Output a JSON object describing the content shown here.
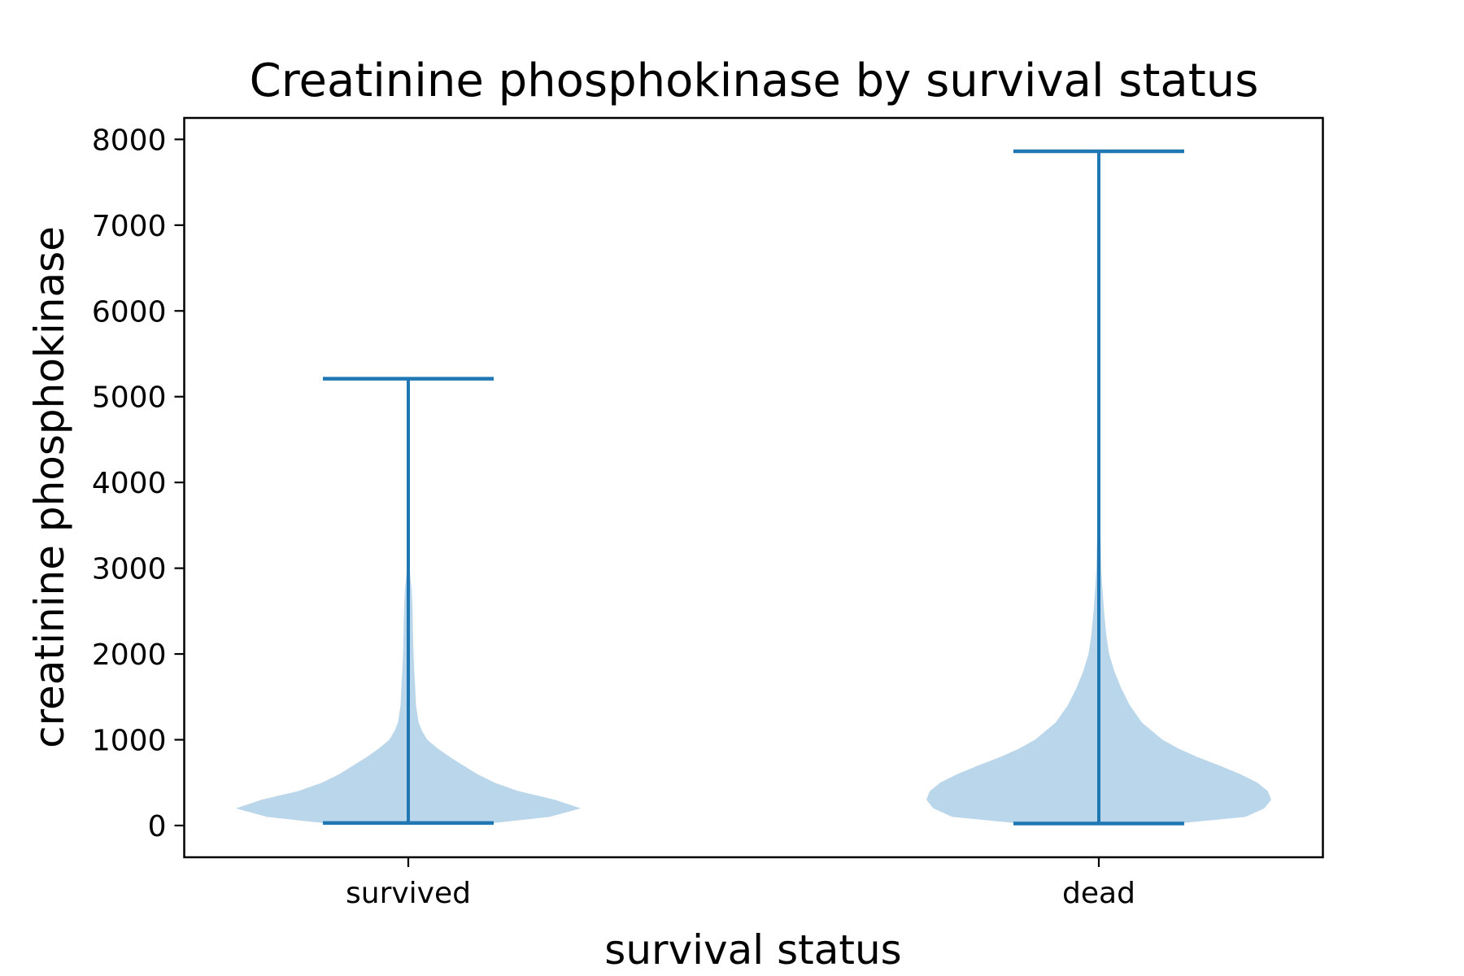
{
  "chart_data": {
    "type": "violin",
    "title": "Creatinine phosphokinase by survival status",
    "xlabel": "survival status",
    "ylabel": "creatinine phosphokinase",
    "categories": [
      "survived",
      "dead"
    ],
    "ylim": [
      -370,
      8250
    ],
    "yticks": [
      0,
      1000,
      2000,
      3000,
      4000,
      5000,
      6000,
      7000,
      8000
    ],
    "ytick_labels": [
      "0",
      "1000",
      "2000",
      "3000",
      "4000",
      "5000",
      "6000",
      "7000",
      "8000"
    ],
    "grid": false,
    "legend": "none",
    "colors": {
      "body": "#bad6ea",
      "lines": "#1f77b4",
      "axes": "#000000"
    },
    "series": [
      {
        "category": "survived",
        "min": 30,
        "max": 5209,
        "density": [
          [
            30,
            0.5
          ],
          [
            100,
            0.82
          ],
          [
            200,
            1.0
          ],
          [
            300,
            0.85
          ],
          [
            400,
            0.64
          ],
          [
            500,
            0.5
          ],
          [
            600,
            0.4
          ],
          [
            700,
            0.32
          ],
          [
            800,
            0.24
          ],
          [
            900,
            0.17
          ],
          [
            1000,
            0.11
          ],
          [
            1100,
            0.08
          ],
          [
            1200,
            0.06
          ],
          [
            1400,
            0.045
          ],
          [
            1600,
            0.04
          ],
          [
            1800,
            0.035
          ],
          [
            2000,
            0.03
          ],
          [
            2200,
            0.028
          ],
          [
            2500,
            0.025
          ],
          [
            2750,
            0.02
          ],
          [
            2900,
            0.012
          ],
          [
            3000,
            0.008
          ],
          [
            3200,
            0.003
          ],
          [
            3500,
            0.001
          ],
          [
            5209,
            0.0
          ]
        ]
      },
      {
        "category": "dead",
        "min": 23,
        "max": 7861,
        "density": [
          [
            23,
            0.45
          ],
          [
            100,
            0.85
          ],
          [
            200,
            0.96
          ],
          [
            300,
            1.0
          ],
          [
            400,
            0.98
          ],
          [
            500,
            0.92
          ],
          [
            600,
            0.82
          ],
          [
            700,
            0.7
          ],
          [
            800,
            0.57
          ],
          [
            900,
            0.46
          ],
          [
            1000,
            0.37
          ],
          [
            1200,
            0.25
          ],
          [
            1400,
            0.18
          ],
          [
            1600,
            0.13
          ],
          [
            1800,
            0.09
          ],
          [
            2000,
            0.06
          ],
          [
            2200,
            0.045
          ],
          [
            2500,
            0.03
          ],
          [
            2800,
            0.02
          ],
          [
            3000,
            0.014
          ],
          [
            3500,
            0.008
          ],
          [
            4500,
            0.005
          ],
          [
            6000,
            0.004
          ],
          [
            7000,
            0.004
          ],
          [
            7500,
            0.006
          ],
          [
            7800,
            0.004
          ],
          [
            7861,
            0.0
          ]
        ]
      }
    ]
  }
}
